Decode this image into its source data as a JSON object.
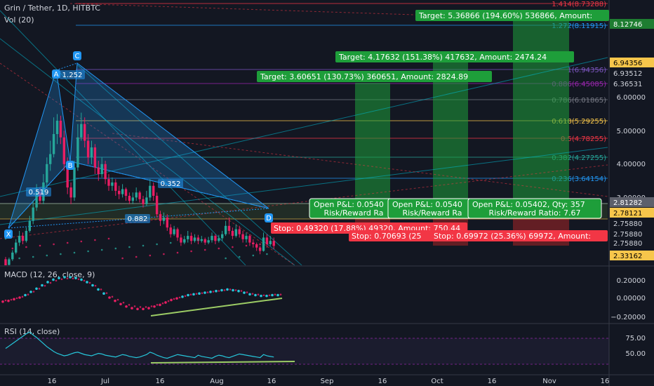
{
  "header": {
    "symbol_line": "Grin / Tether, 1D, HITBTC",
    "vol_label": "Vol (20)",
    "macd_label": "MACD (12, 26, close, 9)",
    "rsi_label": "RSI (14, close)"
  },
  "chart_data": {
    "type": "candlestick",
    "price_axis": {
      "ticks": [
        "6.00000",
        "5.00000",
        "4.00000",
        "3.00000"
      ],
      "badges": [
        {
          "text": "8.12746",
          "color": "#1e7d31",
          "textColor": "#ffffff"
        },
        {
          "text": "6.94356",
          "color": "#f7c64b",
          "textColor": "#000000"
        },
        {
          "text": "6.93512",
          "color": "#131722",
          "textColor": "#d1d4dc"
        },
        {
          "text": "6.36531",
          "color": "#131722",
          "textColor": "#d1d4dc"
        },
        {
          "text": "2.81282",
          "color": "#5d606b",
          "textColor": "#ffffff"
        },
        {
          "text": "2.78121",
          "color": "#f7c64b",
          "textColor": "#000000"
        },
        {
          "text": "2.75880",
          "color": "#131722",
          "textColor": "#d1d4dc"
        },
        {
          "text": "2.75880",
          "color": "#131722",
          "textColor": "#d1d4dc"
        },
        {
          "text": "2.75880",
          "color": "#131722",
          "textColor": "#d1d4dc"
        },
        {
          "text": "2.33162",
          "color": "#f7c64b",
          "textColor": "#000000"
        }
      ]
    },
    "macd_axis": {
      "ticks": [
        "0.20000",
        "0.00000",
        "−0.20000"
      ]
    },
    "rsi_axis": {
      "ticks": [
        "75.00",
        "50.00"
      ]
    },
    "time_axis": {
      "ticks": [
        "16",
        "Jul",
        "16",
        "Aug",
        "16",
        "Sep",
        "16",
        "Oct",
        "16",
        "Nov",
        "16"
      ]
    },
    "fib_levels": [
      {
        "label": "1.414(8.73288)",
        "color": "#f23645"
      },
      {
        "label": "1.272(8.11915)",
        "color": "#2196f3"
      },
      {
        "label": "1(6.94356)",
        "color": "#7e57c2"
      },
      {
        "label": "0.886(6.45085)",
        "color": "#9c27b0"
      },
      {
        "label": "0.786(6.01865)",
        "color": "#787b86"
      },
      {
        "label": "0.618(5.29255)",
        "color": "#f7c64b"
      },
      {
        "label": "0.5(4.78255)",
        "color": "#f23645"
      },
      {
        "label": "0.382(4.27255)",
        "color": "#26a69a"
      },
      {
        "label": "0.236(3.64154)",
        "color": "#2196f3"
      }
    ],
    "pattern_points": {
      "X": "X",
      "A": "A",
      "B": "B",
      "C": "C",
      "D": "D"
    },
    "pattern_ratios": [
      "0.519",
      "1.252",
      "0.352",
      "0.882"
    ],
    "targets": [
      "Target: 5.36866 (194.60%) 536866, Amount: ",
      "Target: 4.17632 (151.38%) 417632, Amount: 2474.24",
      "Target: 3.60651 (130.73%) 360651, Amount: 2824.89"
    ],
    "positions": [
      {
        "pnl": "Open P&L: 0.0540",
        "rr": "Risk/Reward Ra"
      },
      {
        "pnl": "Open P&L: 0.0540",
        "rr": "Risk/Reward Ra"
      },
      {
        "pnl": "Open P&L: 0.05402, Qty: 357",
        "rr": "Risk/Reward Ratio: 7.67"
      }
    ],
    "stops": [
      "Stop: 0.49320 (17.88%) 49320, Amount: 750.44",
      "Stop: 0.70693 (25",
      "Stop: 0.69972 (25.36%) 69972, Amount: "
    ],
    "candles": [
      [
        2.55,
        2.35,
        2.62,
        2.3
      ],
      [
        2.38,
        2.55,
        2.6,
        2.32
      ],
      [
        2.55,
        2.75,
        2.82,
        2.5
      ],
      [
        2.75,
        3.05,
        3.15,
        2.7
      ],
      [
        3.05,
        3.25,
        3.4,
        2.95
      ],
      [
        3.25,
        3.1,
        3.35,
        3.0
      ],
      [
        3.1,
        3.4,
        3.5,
        3.05
      ],
      [
        3.4,
        3.7,
        3.85,
        3.35
      ],
      [
        3.7,
        4.1,
        4.3,
        3.6
      ],
      [
        4.1,
        4.55,
        4.8,
        4.0
      ],
      [
        4.55,
        4.3,
        4.7,
        4.2
      ],
      [
        4.3,
        4.85,
        5.1,
        4.2
      ],
      [
        4.85,
        5.4,
        5.6,
        4.7
      ],
      [
        5.4,
        5.7,
        6.1,
        5.2
      ],
      [
        5.7,
        6.3,
        6.8,
        5.6
      ],
      [
        6.3,
        6.7,
        6.9,
        6.0
      ],
      [
        6.7,
        6.2,
        6.85,
        6.0
      ],
      [
        6.2,
        5.4,
        6.4,
        5.2
      ],
      [
        5.4,
        4.7,
        5.6,
        4.5
      ],
      [
        4.7,
        4.4,
        4.85,
        4.2
      ],
      [
        4.4,
        5.3,
        5.5,
        4.3
      ],
      [
        5.3,
        6.2,
        6.6,
        5.2
      ],
      [
        6.2,
        6.6,
        6.94,
        6.1
      ],
      [
        6.6,
        6.1,
        6.8,
        5.9
      ],
      [
        6.1,
        5.6,
        6.3,
        5.4
      ],
      [
        5.6,
        5.9,
        6.1,
        5.4
      ],
      [
        5.9,
        5.3,
        6.0,
        5.1
      ],
      [
        5.3,
        5.1,
        5.5,
        4.9
      ],
      [
        5.1,
        5.4,
        5.6,
        5.0
      ],
      [
        5.4,
        4.95,
        5.5,
        4.8
      ],
      [
        4.95,
        4.75,
        5.1,
        4.6
      ],
      [
        4.75,
        4.85,
        5.0,
        4.6
      ],
      [
        4.85,
        4.6,
        4.95,
        4.45
      ],
      [
        4.6,
        4.5,
        4.75,
        4.35
      ],
      [
        4.5,
        4.65,
        4.8,
        4.4
      ],
      [
        4.65,
        4.45,
        4.7,
        4.3
      ],
      [
        4.45,
        4.3,
        4.55,
        4.2
      ],
      [
        4.3,
        4.4,
        4.55,
        4.2
      ],
      [
        4.4,
        4.55,
        4.7,
        4.3
      ],
      [
        4.55,
        4.35,
        4.6,
        4.25
      ],
      [
        4.35,
        4.2,
        4.45,
        4.1
      ],
      [
        4.2,
        4.4,
        4.6,
        4.15
      ],
      [
        4.4,
        4.75,
        4.95,
        4.3
      ],
      [
        4.75,
        4.45,
        4.85,
        4.3
      ],
      [
        4.45,
        3.9,
        4.55,
        3.8
      ],
      [
        3.9,
        3.7,
        4.0,
        3.55
      ],
      [
        3.7,
        3.8,
        3.95,
        3.6
      ],
      [
        3.8,
        3.5,
        3.9,
        3.4
      ],
      [
        3.5,
        3.3,
        3.6,
        3.2
      ],
      [
        3.3,
        3.45,
        3.55,
        3.25
      ],
      [
        3.45,
        3.2,
        3.5,
        3.1
      ],
      [
        3.2,
        3.05,
        3.3,
        2.95
      ],
      [
        3.05,
        3.15,
        3.25,
        3.0
      ],
      [
        3.15,
        3.25,
        3.4,
        3.05
      ],
      [
        3.25,
        3.1,
        3.35,
        3.0
      ],
      [
        3.1,
        3.2,
        3.3,
        3.05
      ],
      [
        3.2,
        3.1,
        3.28,
        3.0
      ],
      [
        3.1,
        3.15,
        3.25,
        3.05
      ],
      [
        3.15,
        3.05,
        3.2,
        2.98
      ],
      [
        3.05,
        3.12,
        3.22,
        3.0
      ],
      [
        3.12,
        3.25,
        3.35,
        3.05
      ],
      [
        3.25,
        3.1,
        3.3,
        3.0
      ],
      [
        3.1,
        3.18,
        3.28,
        3.05
      ],
      [
        3.18,
        3.3,
        3.4,
        3.1
      ],
      [
        3.3,
        3.55,
        3.7,
        3.25
      ],
      [
        3.55,
        3.4,
        3.8,
        3.3
      ],
      [
        3.4,
        3.25,
        3.5,
        3.15
      ],
      [
        3.25,
        3.45,
        3.6,
        3.2
      ],
      [
        3.45,
        3.3,
        3.55,
        3.2
      ],
      [
        3.3,
        3.15,
        3.4,
        3.05
      ],
      [
        3.15,
        3.25,
        3.35,
        3.05
      ],
      [
        3.25,
        3.05,
        3.3,
        2.95
      ],
      [
        3.05,
        3.0,
        3.15,
        2.9
      ],
      [
        3.0,
        2.9,
        3.05,
        2.8
      ],
      [
        2.9,
        2.8,
        2.95,
        2.7
      ],
      [
        2.8,
        3.2,
        3.35,
        2.78
      ],
      [
        3.2,
        3.0,
        3.3,
        2.9
      ],
      [
        3.0,
        3.1,
        3.25,
        2.95
      ],
      [
        3.1,
        2.95,
        3.2,
        2.85
      ]
    ],
    "macd": [
      -0.05,
      -0.04,
      -0.02,
      0.0,
      0.03,
      0.07,
      0.11,
      0.15,
      0.19,
      0.22,
      0.24,
      0.25,
      0.25,
      0.24,
      0.22,
      0.19,
      0.15,
      0.1,
      0.05,
      0.0,
      -0.04,
      -0.08,
      -0.11,
      -0.13,
      -0.14,
      -0.14,
      -0.13,
      -0.11,
      -0.09,
      -0.06,
      -0.03,
      -0.01,
      0.01,
      0.03,
      0.04,
      0.05,
      0.06,
      0.07,
      0.08,
      0.09,
      0.1,
      0.09,
      0.08,
      0.06,
      0.04,
      0.03,
      0.02,
      0.02,
      0.03,
      0.03
    ],
    "rsi": [
      58,
      62,
      66,
      70,
      74,
      78,
      82,
      85,
      80,
      76,
      71,
      66,
      61,
      57,
      53,
      50,
      48,
      46,
      47,
      49,
      51,
      52,
      50,
      48,
      47,
      46,
      48,
      50,
      49,
      47,
      46,
      45,
      44,
      46,
      48,
      47,
      45,
      44,
      43,
      44,
      46,
      48,
      52,
      50,
      47,
      45,
      43,
      42,
      44,
      46,
      48,
      47,
      46,
      45,
      44,
      43,
      47,
      45,
      44,
      43,
      42,
      45,
      47,
      46,
      44,
      43,
      45,
      47,
      49,
      48,
      47,
      46,
      45,
      44,
      43,
      48,
      46,
      45,
      44
    ]
  }
}
